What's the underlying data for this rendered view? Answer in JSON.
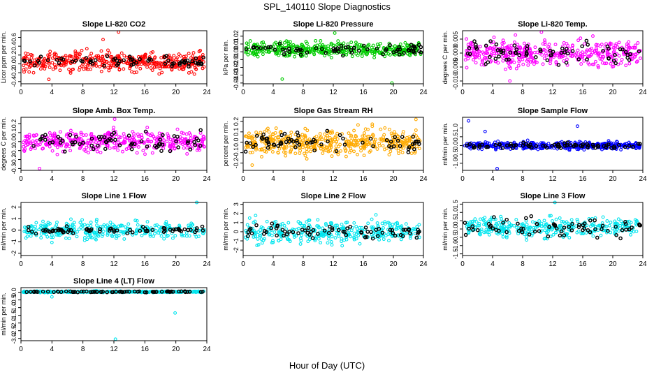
{
  "figure": {
    "title": "SPL_140110  Slope Diagnostics",
    "xlabel": "Hour of Day (UTC)"
  },
  "chart_data": [
    {
      "type": "scatter",
      "title": "Slope Li-820 CO2",
      "ylabel": "Licor ppm per min.",
      "xlim": [
        0,
        24
      ],
      "xticks": [
        0,
        4,
        8,
        12,
        16,
        20,
        24
      ],
      "ylim": [
        -0.45,
        0.75
      ],
      "yticks": [
        -0.4,
        -0.2,
        0.0,
        0.2,
        0.4,
        0.6
      ],
      "ytick_labels": [
        "-0.4",
        "-0.2",
        "0.0",
        "0.2",
        "0.4",
        "0.6"
      ],
      "grid": false,
      "series": [
        {
          "color": "#ff0000",
          "center": 0.05,
          "spread": 0.2,
          "count": 420,
          "outliers": [
            [
              12.6,
              0.72
            ],
            [
              10.6,
              0.55
            ],
            [
              3.6,
              -0.35
            ]
          ]
        },
        {
          "color": "#000000",
          "center": 0.05,
          "spread": 0.1,
          "count": 70,
          "outliers": []
        }
      ]
    },
    {
      "type": "scatter",
      "title": "Slope Li-820 Pressure",
      "ylabel": "kPa per min.",
      "xlim": [
        0,
        24
      ],
      "xticks": [
        0,
        4,
        8,
        12,
        16,
        20,
        24
      ],
      "ylim": [
        -0.041,
        0.027
      ],
      "yticks": [
        -0.04,
        -0.03,
        -0.02,
        -0.01,
        0.0,
        0.01,
        0.02
      ],
      "ytick_labels": [
        "-0.04",
        "-0.03",
        "-0.02",
        "-0.01",
        "0.00",
        "0.01",
        "0.02"
      ],
      "grid": false,
      "series": [
        {
          "color": "#00cc00",
          "center": 0.003,
          "spread": 0.008,
          "count": 420,
          "outliers": [
            [
              12.2,
              0.024
            ],
            [
              19.8,
              -0.04
            ],
            [
              5.2,
              -0.035
            ]
          ]
        },
        {
          "color": "#000000",
          "center": 0.003,
          "spread": 0.007,
          "count": 70,
          "outliers": []
        }
      ]
    },
    {
      "type": "scatter",
      "title": "Slope Li-820 Temp.",
      "ylabel": "degrees C per min.",
      "xlim": [
        0,
        24
      ],
      "xticks": [
        0,
        4,
        8,
        12,
        16,
        20,
        24
      ],
      "ylim": [
        -0.011,
        0.008
      ],
      "yticks": [
        -0.01,
        -0.005,
        0.0,
        0.005
      ],
      "ytick_labels": [
        "-0.010",
        "-0.005",
        "0.000",
        "0.005"
      ],
      "grid": false,
      "series": [
        {
          "color": "#ff00ff",
          "center": 0.0,
          "spread": 0.004,
          "count": 420,
          "outliers": [
            [
              10.5,
              0.0075
            ],
            [
              6.3,
              -0.01
            ]
          ]
        },
        {
          "color": "#000000",
          "center": 0.0,
          "spread": 0.004,
          "count": 70,
          "outliers": []
        }
      ]
    },
    {
      "type": "scatter",
      "title": "Slope Amb. Box Temp.",
      "ylabel": "degrees C per min.",
      "xlim": [
        0,
        24
      ],
      "xticks": [
        0,
        4,
        8,
        12,
        16,
        20,
        24
      ],
      "ylim": [
        -0.32,
        0.27
      ],
      "yticks": [
        -0.3,
        -0.2,
        -0.1,
        0.0,
        0.1,
        0.2
      ],
      "ytick_labels": [
        "-0.3",
        "-0.2",
        "-0.1",
        "0.0",
        "0.1",
        "0.2"
      ],
      "grid": false,
      "series": [
        {
          "color": "#ff00ff",
          "center": 0.0,
          "spread": 0.1,
          "count": 420,
          "outliers": [
            [
              12.1,
              0.25
            ],
            [
              2.4,
              -0.3
            ]
          ]
        },
        {
          "color": "#000000",
          "center": 0.0,
          "spread": 0.1,
          "count": 70,
          "outliers": []
        }
      ]
    },
    {
      "type": "scatter",
      "title": "Slope Gas Stream RH",
      "ylabel": "percent per min.",
      "xlim": [
        0,
        24
      ],
      "xticks": [
        0,
        4,
        8,
        12,
        16,
        20,
        24
      ],
      "ylim": [
        -0.27,
        0.24
      ],
      "yticks": [
        -0.2,
        -0.1,
        0.0,
        0.1,
        0.2
      ],
      "ytick_labels": [
        "-0.2",
        "-0.1",
        "0.0",
        "0.1",
        "0.2"
      ],
      "grid": false,
      "series": [
        {
          "color": "#ffaa00",
          "center": 0.0,
          "spread": 0.11,
          "count": 450,
          "outliers": [
            [
              1.2,
              -0.22
            ],
            [
              23.0,
              0.22
            ]
          ]
        },
        {
          "color": "#000000",
          "center": 0.0,
          "spread": 0.08,
          "count": 70,
          "outliers": []
        }
      ]
    },
    {
      "type": "scatter",
      "title": "Slope Sample Flow",
      "ylabel": "ml/min per min.",
      "xlim": [
        0,
        24
      ],
      "xticks": [
        0,
        4,
        8,
        12,
        16,
        20,
        24
      ],
      "ylim": [
        -1.4,
        1.6
      ],
      "yticks": [
        -1.0,
        -0.5,
        0.0,
        0.5,
        1.0
      ],
      "ytick_labels": [
        "-1.0",
        "-0.5",
        "0.0",
        "0.5",
        "1.0"
      ],
      "grid": false,
      "series": [
        {
          "color": "#0000ff",
          "center": 0.0,
          "spread": 0.18,
          "count": 420,
          "outliers": [
            [
              0.8,
              1.4
            ],
            [
              4.6,
              -1.3
            ],
            [
              15.3,
              1.1
            ],
            [
              3.0,
              0.8
            ]
          ]
        },
        {
          "color": "#000000",
          "center": 0.0,
          "spread": 0.15,
          "count": 70,
          "outliers": []
        }
      ]
    },
    {
      "type": "scatter",
      "title": "Slope Line 1 Flow",
      "ylabel": "ml/min per min.",
      "xlim": [
        0,
        24
      ],
      "xticks": [
        0,
        4,
        8,
        12,
        16,
        20,
        24
      ],
      "ylim": [
        -2.2,
        2.4
      ],
      "yticks": [
        -2,
        -1,
        0,
        1,
        2
      ],
      "ytick_labels": [
        "-2",
        "-1",
        "0",
        "1",
        "2"
      ],
      "grid": false,
      "series": [
        {
          "color": "#00e5ee",
          "center": 0.0,
          "spread": 0.7,
          "count": 320,
          "outliers": [
            [
              22.7,
              2.4
            ]
          ]
        },
        {
          "color": "#000000",
          "center": 0.0,
          "spread": 0.25,
          "count": 70,
          "outliers": []
        }
      ]
    },
    {
      "type": "scatter",
      "title": "Slope Line 2 Flow",
      "ylabel": "ml/min per min.",
      "xlim": [
        0,
        24
      ],
      "xticks": [
        0,
        4,
        8,
        12,
        16,
        20,
        24
      ],
      "ylim": [
        -2.6,
        3.2
      ],
      "yticks": [
        -2,
        -1,
        0,
        1,
        2,
        3
      ],
      "ytick_labels": [
        "-2",
        "-1",
        "0",
        "1",
        "2",
        "3"
      ],
      "grid": false,
      "series": [
        {
          "color": "#00e5ee",
          "center": 0.0,
          "spread": 1.1,
          "count": 340,
          "outliers": []
        },
        {
          "color": "#000000",
          "center": 0.0,
          "spread": 0.7,
          "count": 70,
          "outliers": []
        }
      ]
    },
    {
      "type": "scatter",
      "title": "Slope Line 3 Flow",
      "ylabel": "ml/min per min.",
      "xlim": [
        0,
        24
      ],
      "xticks": [
        0,
        4,
        8,
        12,
        16,
        20,
        24
      ],
      "ylim": [
        -1.6,
        1.6
      ],
      "yticks": [
        -1.5,
        -1.0,
        -0.5,
        0.0,
        0.5,
        1.0,
        1.5
      ],
      "ytick_labels": [
        "-1.5",
        "-1.0",
        "-0.5",
        "0.0",
        "0.5",
        "1.0",
        "1.5"
      ],
      "grid": false,
      "series": [
        {
          "color": "#00e5ee",
          "center": 0.1,
          "spread": 0.55,
          "count": 340,
          "outliers": [
            [
              12.3,
              1.6
            ]
          ]
        },
        {
          "color": "#000000",
          "center": 0.1,
          "spread": 0.5,
          "count": 70,
          "outliers": []
        }
      ]
    },
    {
      "type": "scatter",
      "title": "Slope Line 4 (LT) Flow",
      "ylabel": "ml/min per min.",
      "xlim": [
        0,
        24
      ],
      "xticks": [
        0,
        4,
        8,
        12,
        16,
        20,
        24
      ],
      "ylim": [
        -3.15,
        0.3
      ],
      "yticks": [
        -3.0,
        -2.5,
        -2.0,
        -1.5,
        -1.0,
        -0.5,
        0.0
      ],
      "ytick_labels": [
        "-3.0",
        "-2.5",
        "-2.0",
        "-1.5",
        "-1.0",
        "-0.5",
        "0.0"
      ],
      "grid": false,
      "series": [
        {
          "color": "#00e5ee",
          "center": 0.03,
          "spread": 0.04,
          "count": 380,
          "outliers": [
            [
              12.2,
              -3.05
            ],
            [
              19.9,
              -1.35
            ],
            [
              4.0,
              -0.3
            ]
          ]
        },
        {
          "color": "#000000",
          "center": 0.03,
          "spread": 0.03,
          "count": 70,
          "outliers": []
        }
      ]
    }
  ]
}
